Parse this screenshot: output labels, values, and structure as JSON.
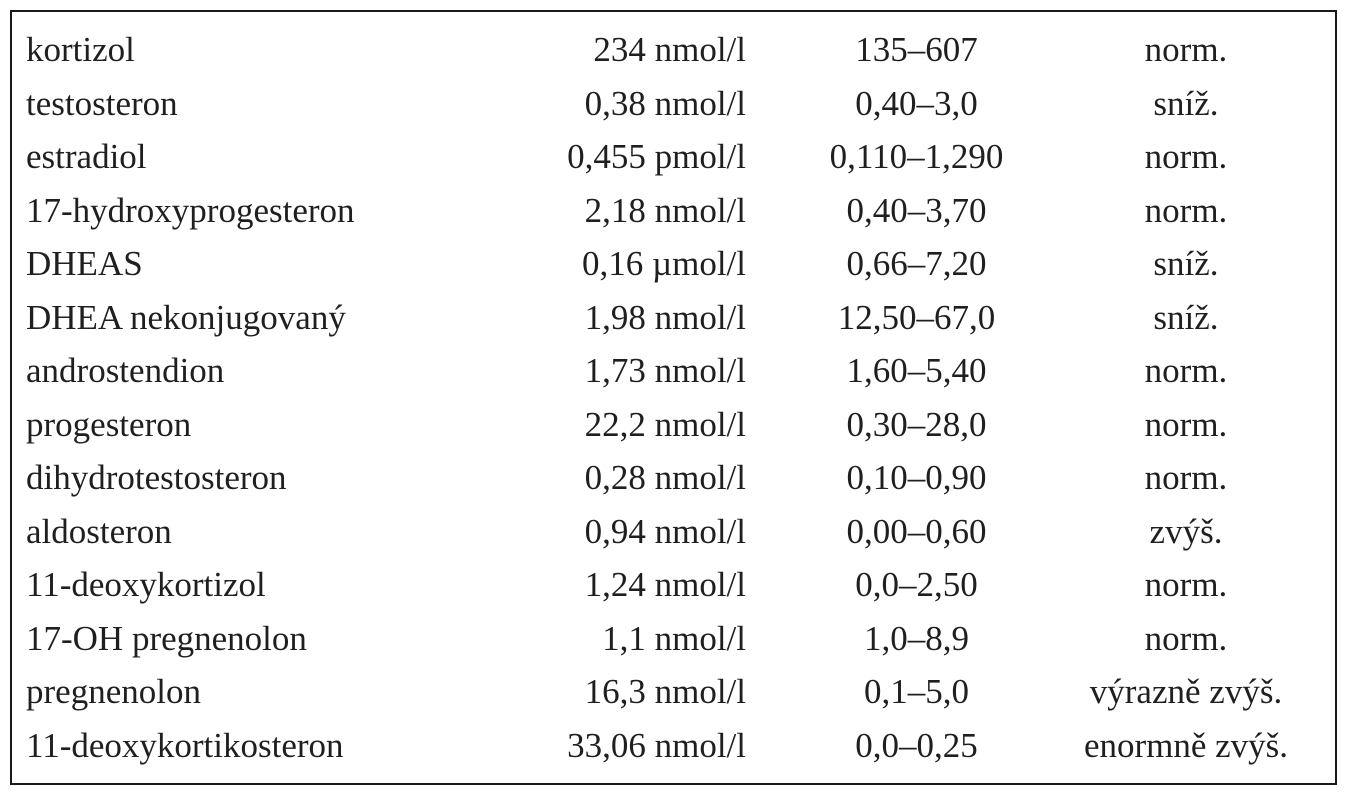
{
  "table": {
    "rows": [
      {
        "analyte": "kortizol",
        "value": "234 nmol/l",
        "range": "135–607",
        "status": "norm."
      },
      {
        "analyte": "testosteron",
        "value": "0,38 nmol/l",
        "range": "0,40–3,0",
        "status": "sníž."
      },
      {
        "analyte": "estradiol",
        "value": "0,455 pmol/l",
        "range": "0,110–1,290",
        "status": "norm."
      },
      {
        "analyte": "17-hydroxyprogesteron",
        "value": "2,18 nmol/l",
        "range": "0,40–3,70",
        "status": "norm."
      },
      {
        "analyte": "DHEAS",
        "value": "0,16 µmol/l",
        "range": "0,66–7,20",
        "status": "sníž."
      },
      {
        "analyte": "DHEA nekonjugovaný",
        "value": "1,98 nmol/l",
        "range": "12,50–67,0",
        "status": "sníž."
      },
      {
        "analyte": "androstendion",
        "value": "1,73 nmol/l",
        "range": "1,60–5,40",
        "status": "norm."
      },
      {
        "analyte": "progesteron",
        "value": "22,2 nmol/l",
        "range": "0,30–28,0",
        "status": "norm."
      },
      {
        "analyte": "dihydrotestosteron",
        "value": "0,28 nmol/l",
        "range": "0,10–0,90",
        "status": "norm."
      },
      {
        "analyte": "aldosteron",
        "value": "0,94 nmol/l",
        "range": "0,00–0,60",
        "status": "zvýš."
      },
      {
        "analyte": "11-deoxykortizol",
        "value": "1,24 nmol/l",
        "range": "0,0–2,50",
        "status": "norm."
      },
      {
        "analyte": "17-OH pregnenolon",
        "value": "1,1 nmol/l",
        "range": "1,0–8,9",
        "status": "norm."
      },
      {
        "analyte": "pregnenolon",
        "value": "16,3 nmol/l",
        "range": "0,1–5,0",
        "status": "výrazně zvýš."
      },
      {
        "analyte": "11-deoxykortikosteron",
        "value": "33,06 nmol/l",
        "range": "0,0–0,25",
        "status": "enormně zvýš."
      }
    ]
  }
}
